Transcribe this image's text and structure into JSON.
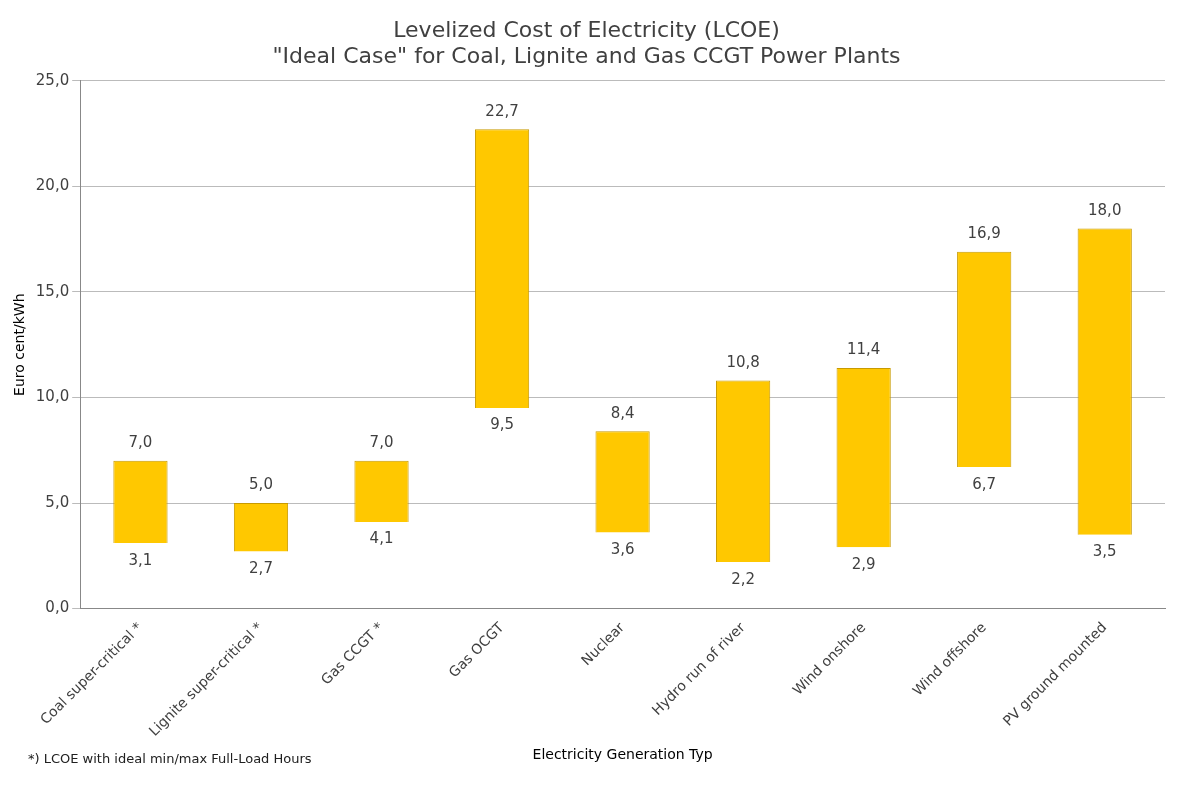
{
  "chart_data": {
    "type": "bar",
    "title": "Levelized Cost of Electricity (LCOE)",
    "subtitle": "\"Ideal Case\" for Coal, Lignite and Gas CCGT Power Plants",
    "xlabel": "Electricity Generation Typ",
    "ylabel": "Euro cent/kWh",
    "categories": [
      "Coal super-critical *",
      "Lignite super-critical *",
      "Gas CCGT *",
      "Gas OCGT",
      "Nuclear",
      "Hydro run of river",
      "Wind onshore",
      "Wind offshore",
      "PV ground mounted"
    ],
    "base": [
      3.1,
      2.7,
      4.1,
      9.5,
      3.6,
      2.2,
      2.9,
      6.7,
      3.5
    ],
    "values": [
      3.9,
      2.3,
      2.9,
      13.2,
      4.8,
      8.6,
      8.5,
      10.2,
      14.5
    ],
    "color": "#ffc800",
    "ylim": [
      0,
      25
    ],
    "yticks": [
      {
        "value": 0,
        "label": "0,0"
      },
      {
        "value": 5,
        "label": "5,0"
      },
      {
        "value": 10,
        "label": "10,0"
      },
      {
        "value": 15,
        "label": "15,0"
      },
      {
        "value": 20,
        "label": "20,0"
      },
      {
        "value": 25,
        "label": "25,0"
      }
    ],
    "grid": "y",
    "legend": false,
    "annotations": [
      {
        "text": "7,0",
        "x": "Coal super-critical *",
        "y": 7.0
      },
      {
        "text": "3,1",
        "x": "Coal super-critical *",
        "y": 3.1
      },
      {
        "text": "5,0",
        "x": "Lignite super-critical *",
        "y": 5.0
      },
      {
        "text": "2,7",
        "x": "Lignite super-critical *",
        "y": 2.7
      },
      {
        "text": "7,0",
        "x": "Gas CCGT *",
        "y": 7.0
      },
      {
        "text": "4,1",
        "x": "Gas CCGT *",
        "y": 4.1
      },
      {
        "text": "22,7",
        "x": "Gas OCGT",
        "y": 22.7
      },
      {
        "text": "9,5",
        "x": "Gas OCGT",
        "y": 9.5
      },
      {
        "text": "8,4",
        "x": "Nuclear",
        "y": 8.4
      },
      {
        "text": "3,6",
        "x": "Nuclear",
        "y": 3.6
      },
      {
        "text": "10,8",
        "x": "Hydro run of river",
        "y": 10.8
      },
      {
        "text": "2,2",
        "x": "Hydro run of river",
        "y": 2.2
      },
      {
        "text": "11,4",
        "x": "Wind onshore",
        "y": 11.4
      },
      {
        "text": "2,9",
        "x": "Wind onshore",
        "y": 2.9
      },
      {
        "text": "16,9",
        "x": "Wind offshore",
        "y": 16.9
      },
      {
        "text": "6,7",
        "x": "Wind offshore",
        "y": 6.7
      },
      {
        "text": "18,0",
        "x": "PV ground mounted",
        "y": 18.0
      },
      {
        "text": "3,5",
        "x": "PV ground mounted",
        "y": 3.5
      },
      "*) LCOE with ideal min/max Full-Load Hours"
    ]
  }
}
